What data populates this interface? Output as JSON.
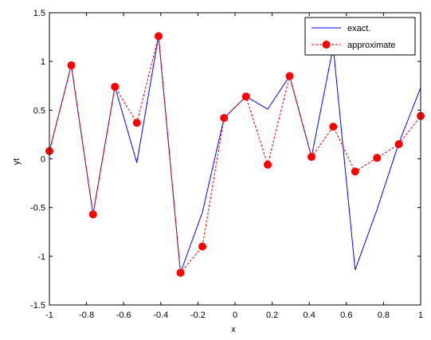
{
  "chart_data": {
    "type": "line",
    "xlabel": "x",
    "ylabel": "yt",
    "xlim": [
      -1,
      1
    ],
    "ylim": [
      -1.5,
      1.5
    ],
    "xticks": [
      -1,
      -0.8,
      -0.6,
      -0.4,
      -0.2,
      0,
      0.2,
      0.4,
      0.6,
      0.8,
      1
    ],
    "xtick_labels": [
      "-1",
      "-0.8",
      "-0.6",
      "-0.4",
      "-0.2",
      "0",
      "0.2",
      "0.4",
      "0.6",
      "0.8",
      "1"
    ],
    "yticks": [
      -1.5,
      -1,
      -0.5,
      0,
      0.5,
      1,
      1.5
    ],
    "ytick_labels": [
      "-1.5",
      "-1",
      "-0.5",
      "0",
      "0.5",
      "1",
      "1.5"
    ],
    "grid": false,
    "legend_position": "top-right",
    "series": [
      {
        "name": "exact.",
        "color": "#0000ff",
        "style": "solid",
        "marker": "none",
        "x": [
          -1,
          -0.882,
          -0.765,
          -0.647,
          -0.529,
          -0.412,
          -0.294,
          -0.176,
          -0.059,
          0.059,
          0.176,
          0.294,
          0.412,
          0.529,
          0.647,
          0.765,
          0.882,
          1
        ],
        "y": [
          0.08,
          0.96,
          -0.57,
          0.74,
          -0.04,
          1.26,
          -1.17,
          -0.55,
          0.42,
          0.64,
          0.51,
          0.85,
          0.02,
          1.15,
          -1.14,
          -0.52,
          0.16,
          0.73
        ]
      },
      {
        "name": "approximate",
        "color": "#ff0000",
        "style": "dashed",
        "marker": "circle",
        "x": [
          -1,
          -0.882,
          -0.765,
          -0.647,
          -0.529,
          -0.412,
          -0.294,
          -0.176,
          -0.059,
          0.059,
          0.176,
          0.294,
          0.412,
          0.529,
          0.647,
          0.765,
          0.882,
          1
        ],
        "y": [
          0.08,
          0.96,
          -0.57,
          0.74,
          0.37,
          1.26,
          -1.17,
          -0.9,
          0.42,
          0.64,
          -0.06,
          0.85,
          0.02,
          0.33,
          -0.13,
          0.01,
          0.15,
          0.44
        ]
      }
    ]
  }
}
